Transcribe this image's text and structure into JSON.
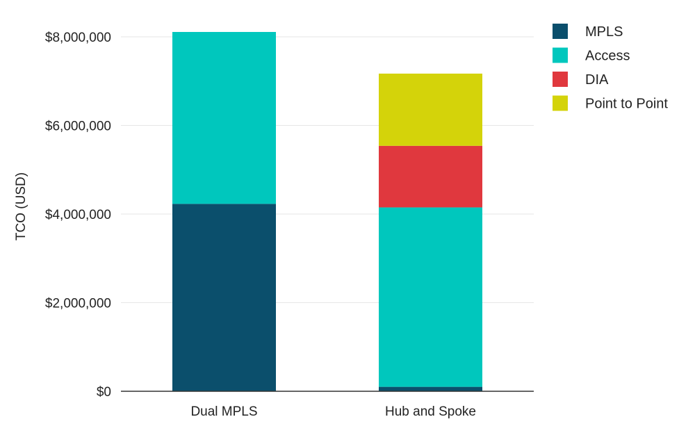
{
  "chart_data": {
    "type": "bar",
    "stacked": true,
    "categories": [
      "Dual MPLS",
      "Hub and Spoke"
    ],
    "series": [
      {
        "name": "MPLS",
        "color": "#0b4f6c",
        "values": [
          4230000,
          100000
        ]
      },
      {
        "name": "Access",
        "color": "#00c7bd",
        "values": [
          3880000,
          4050000
        ]
      },
      {
        "name": "DIA",
        "color": "#e0383e",
        "values": [
          0,
          1390000
        ]
      },
      {
        "name": "Point to Point",
        "color": "#d4d30a",
        "values": [
          0,
          1630000
        ]
      }
    ],
    "title": "",
    "xlabel": "",
    "ylabel": "TCO (USD)",
    "ylim": [
      0,
      8000000
    ],
    "yticks": [
      0,
      2000000,
      4000000,
      6000000,
      8000000
    ],
    "ytick_labels": [
      "$0",
      "$2,000,000",
      "$4,000,000",
      "$6,000,000",
      "$8,000,000"
    ],
    "grid": true,
    "legend_position": "top-right"
  }
}
